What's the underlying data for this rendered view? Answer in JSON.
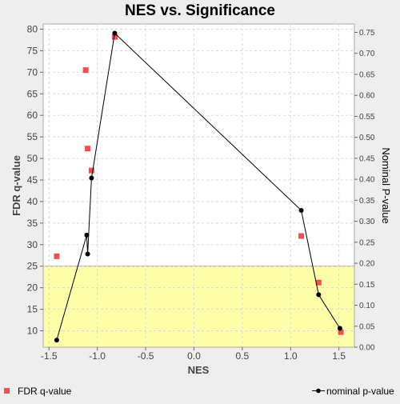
{
  "chart_data": {
    "type": "scatter",
    "title": "NES vs. Significance",
    "xlabel": "NES",
    "ylabel_left": "FDR q-value",
    "ylabel_right": "Nominal P-value",
    "xlim": [
      -1.56,
      1.66
    ],
    "ylim_left": [
      6.2,
      81.2
    ],
    "ylim_right": [
      0.0,
      0.77
    ],
    "x_ticks": [
      "-1.5",
      "-1.0",
      "-0.5",
      "0.0",
      "0.5",
      "1.0",
      "1.5"
    ],
    "y_left_ticks": [
      "10",
      "15",
      "20",
      "25",
      "30",
      "35",
      "40",
      "45",
      "50",
      "55",
      "60",
      "65",
      "70",
      "75",
      "80"
    ],
    "y_right_ticks": [
      "0.00",
      "0.05",
      "0.10",
      "0.15",
      "0.20",
      "0.25",
      "0.30",
      "0.35",
      "0.40",
      "0.45",
      "0.50",
      "0.55",
      "0.60",
      "0.65",
      "0.70",
      "0.75"
    ],
    "grid": true,
    "legend_position": "bottom",
    "highlight_band": {
      "y_from": 0,
      "y_to": 25,
      "axis": "left",
      "color": "#ffffaa"
    },
    "series": [
      {
        "name": "FDR q-value",
        "axis": "left",
        "style": "markers",
        "color": "#f05050",
        "points": [
          {
            "x": -1.42,
            "y": 27.3
          },
          {
            "x": -1.12,
            "y": 70.5
          },
          {
            "x": -1.1,
            "y": 52.3
          },
          {
            "x": -1.06,
            "y": 47.2
          },
          {
            "x": -0.82,
            "y": 78.2
          },
          {
            "x": 1.11,
            "y": 32.0
          },
          {
            "x": 1.29,
            "y": 21.2
          },
          {
            "x": 1.52,
            "y": 9.7
          }
        ]
      },
      {
        "name": "nominal p-value",
        "axis": "right",
        "style": "line-markers",
        "color": "#000000",
        "points": [
          {
            "x": -1.42,
            "y": 0.017
          },
          {
            "x": -1.11,
            "y": 0.267
          },
          {
            "x": -1.1,
            "y": 0.222
          },
          {
            "x": -1.06,
            "y": 0.403
          },
          {
            "x": -0.82,
            "y": 0.748
          },
          {
            "x": 1.11,
            "y": 0.326
          },
          {
            "x": 1.29,
            "y": 0.125
          },
          {
            "x": 1.51,
            "y": 0.045
          }
        ]
      }
    ]
  }
}
